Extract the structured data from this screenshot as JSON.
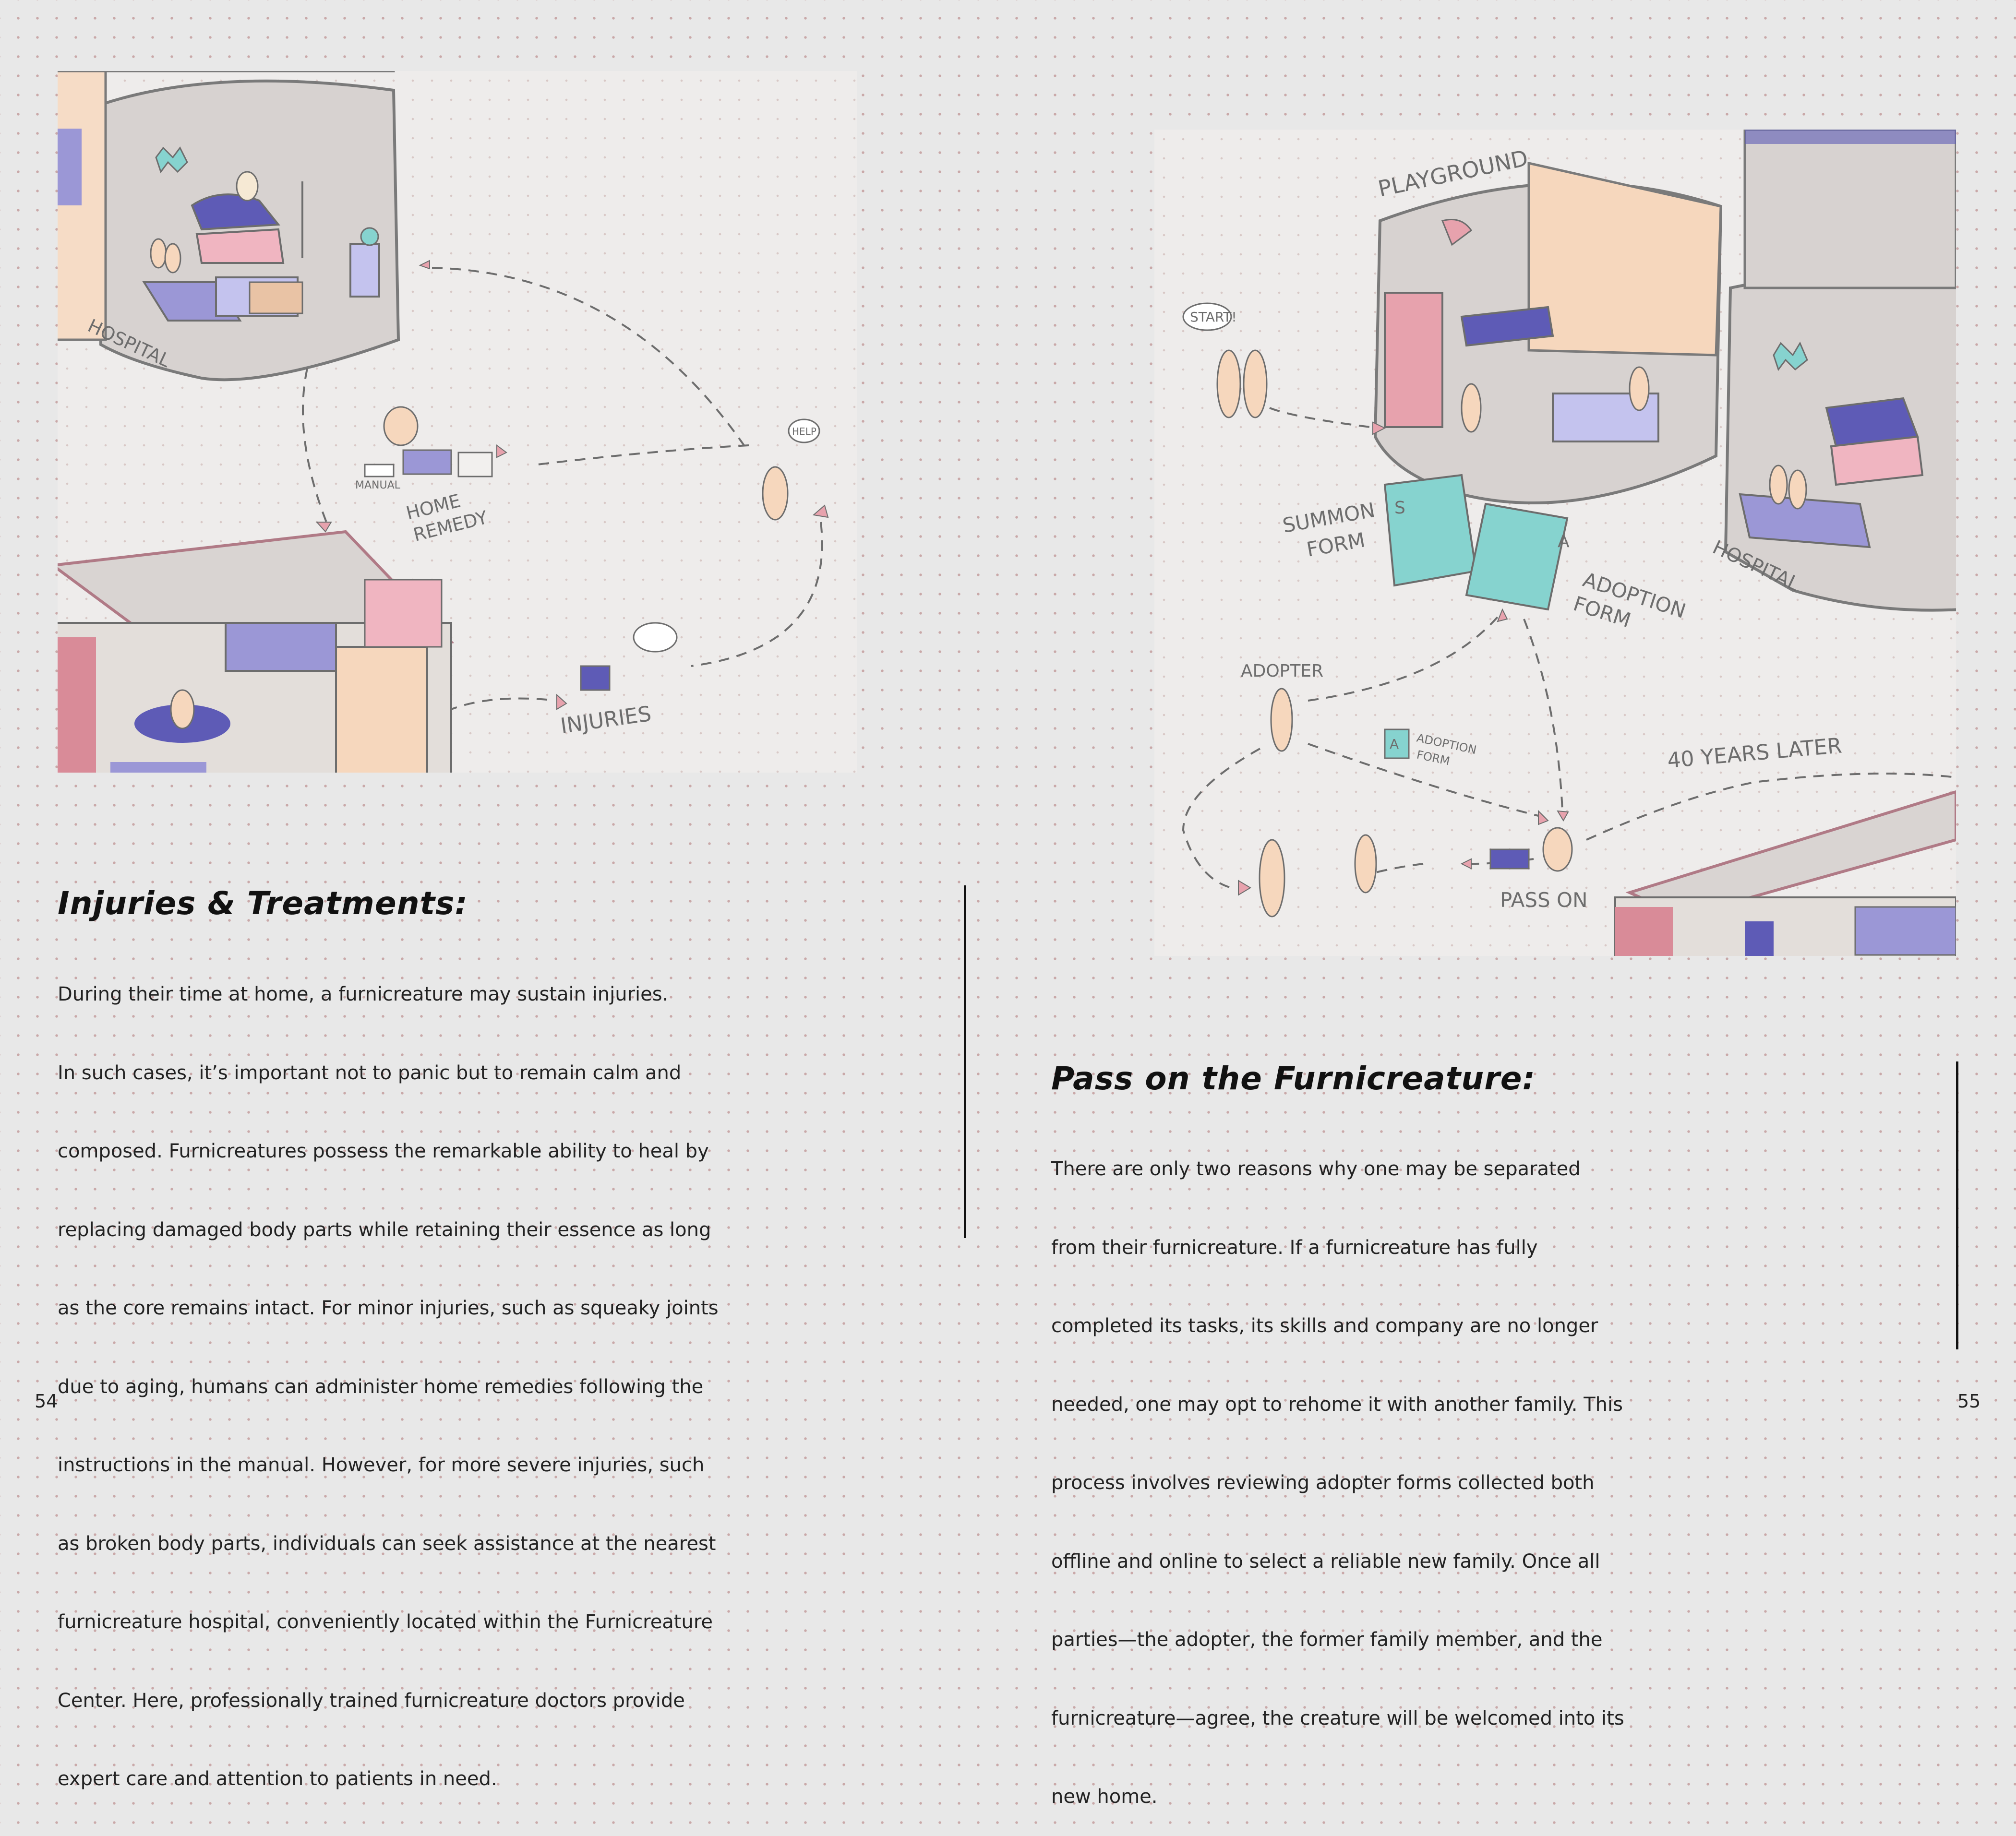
{
  "left_page": {
    "illustration": {
      "labels": {
        "hospital": "HOSPITAL",
        "manual": "MANUAL",
        "home_remedy_1": "HOME",
        "home_remedy_2": "REMEDY",
        "help": "HELP",
        "injuries": "INJURIES"
      }
    },
    "section": {
      "title": "Injuries & Treatments:",
      "lines": [
        "During their time at home, a furnicreature may sustain injuries.",
        "In such cases, it’s important not to panic but to remain calm and",
        "composed. Furnicreatures possess the remarkable ability to heal by",
        "replacing damaged body parts while retaining their essence as long",
        "as the core remains intact. For minor injuries, such as squeaky joints",
        "due to aging, humans can administer home remedies following the",
        "instructions in the manual. However, for more severe injuries, such",
        "as broken body parts, individuals can seek assistance at the nearest",
        "furnicreature hospital, conveniently located within the Furnicreature",
        "Center. Here, professionally trained furnicreature doctors provide",
        "expert care and attention to patients in need."
      ]
    },
    "page_number": "54"
  },
  "right_page": {
    "illustration": {
      "labels": {
        "playground": "PLAYGROUND",
        "start": "START!",
        "summon_form_1": "SUMMON",
        "summon_form_2": "FORM",
        "adoption_form_1": "ADOPTION",
        "adoption_form_2": "FORM",
        "hospital": "HOSPITAL",
        "adopter": "ADOPTER",
        "small_adoption_1": "ADOPTION",
        "small_adoption_2": "FORM",
        "forty_years": "40 YEARS LATER",
        "pass_on": "PASS ON",
        "letter_s": "S",
        "letter_a": "A"
      }
    },
    "section": {
      "title": "Pass on the Furnicreature:",
      "lines": [
        "There are only two reasons why one may be separated",
        "from their furnicreature. If a furnicreature has fully",
        "completed its tasks, its skills and company are no longer",
        "needed, one may opt to rehome it with another family. This",
        "process involves reviewing adopter forms collected both",
        "offline and online to select a reliable new family. Once all",
        "parties—the adopter, the former family member, and the",
        "furnicreature—agree, the creature will be welcomed into its",
        "new home."
      ]
    },
    "page_number": "55"
  },
  "colors": {
    "page_bg": "#e8e8e8",
    "dots": "#c9a8a8",
    "lavender": "#9b97d6",
    "peach": "#f6d7bd",
    "pink": "#e7a2ad",
    "teal": "#86d3cf",
    "sketch_gray": "#6d6d6d"
  }
}
